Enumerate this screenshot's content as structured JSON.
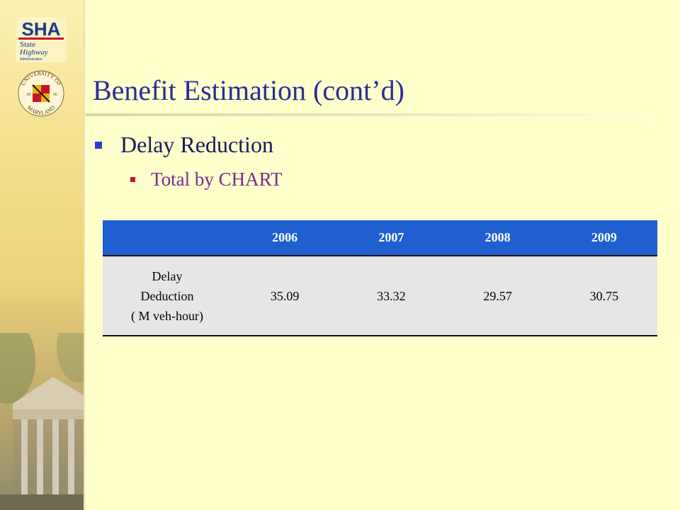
{
  "slide": {
    "title": "Benefit Estimation (cont’d)",
    "bullet1": "Delay Reduction",
    "bullet2": "Total by CHART"
  },
  "logos": {
    "sha": {
      "main": "SHA",
      "line1": "State",
      "line2": "Highway",
      "line3": "Administration"
    },
    "umd": {
      "top": "UNIVERSITY OF",
      "bottom": "MARYLAND",
      "left": "18",
      "right": "56"
    }
  },
  "table": {
    "headers": [
      "",
      "2006",
      "2007",
      "2008",
      "2009"
    ],
    "row_label": [
      "Delay",
      "Deduction",
      "( M veh-hour)"
    ],
    "values": [
      "35.09",
      "33.32",
      "29.57",
      "30.75"
    ]
  },
  "colors": {
    "title": "#2b2b9a",
    "bullet_level1": "#2e3bd0",
    "bullet_level2": "#c8102e",
    "table_header": "#1f5fd0",
    "table_row": "#e6e6e6"
  }
}
